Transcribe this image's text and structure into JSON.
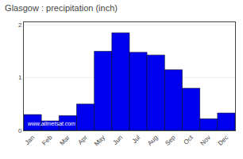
{
  "chart_data": {
    "type": "bar",
    "title": "Glasgow : precipitation (inch)",
    "categories": [
      "Jan",
      "Feb",
      "Mar",
      "Apr",
      "May",
      "Jun",
      "Jul",
      "Aug",
      "Sep",
      "Oct",
      "Nov",
      "Dec"
    ],
    "values": [
      0.3,
      0.18,
      0.28,
      0.5,
      1.5,
      1.85,
      1.48,
      1.43,
      1.15,
      0.8,
      0.22,
      0.33
    ],
    "color": "#0000ee",
    "ylim": [
      0,
      2.05
    ],
    "yticks": [
      0,
      1,
      2
    ],
    "grid": true,
    "annotations": [
      "www.allmetsat.com"
    ]
  }
}
